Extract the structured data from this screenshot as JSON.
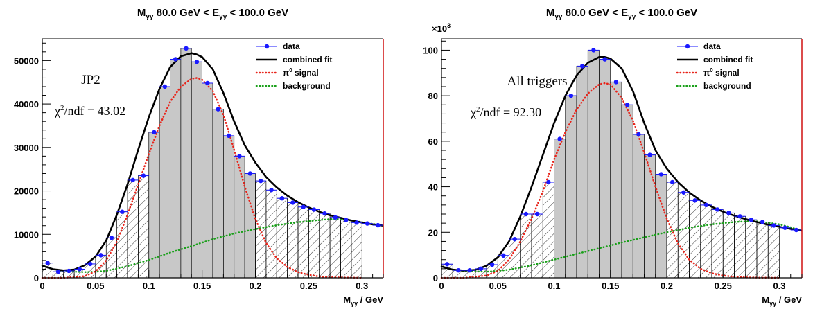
{
  "chart_data": [
    {
      "type": "bar",
      "title": {
        "main": "M",
        "main_sub": "γγ",
        "mid": " 80.0 GeV < E",
        "mid_sub": "γγ",
        "end": " < 100.0 GeV"
      },
      "xlabel": {
        "main": "M",
        "sub": "γγ",
        "end": " / GeV"
      },
      "ylabel": "",
      "multiplier_label": "",
      "xlim": [
        0,
        0.32
      ],
      "ylim": [
        0,
        55000
      ],
      "x_ticks": [
        0,
        0.05,
        0.1,
        0.15,
        0.2,
        0.25,
        0.3
      ],
      "x_tick_labels": [
        "0",
        "0.05",
        "0.1",
        "0.15",
        "0.2",
        "0.25",
        "0.3"
      ],
      "y_ticks": [
        0,
        10000,
        20000,
        30000,
        40000,
        50000
      ],
      "y_tick_labels": [
        "0",
        "10000",
        "20000",
        "30000",
        "40000",
        "50000"
      ],
      "bin_width": 0.01,
      "data": {
        "x": [
          0.005,
          0.015,
          0.025,
          0.035,
          0.045,
          0.055,
          0.065,
          0.075,
          0.085,
          0.095,
          0.105,
          0.115,
          0.125,
          0.135,
          0.145,
          0.155,
          0.165,
          0.175,
          0.185,
          0.195,
          0.205,
          0.215,
          0.225,
          0.235,
          0.245,
          0.255,
          0.265,
          0.275,
          0.285,
          0.295,
          0.305,
          0.315
        ],
        "y": [
          3400,
          1400,
          1600,
          2000,
          3200,
          5200,
          9200,
          15200,
          22500,
          23500,
          33500,
          44000,
          50300,
          52800,
          49700,
          44800,
          38800,
          32700,
          28000,
          24000,
          22300,
          20200,
          18300,
          17300,
          16300,
          15700,
          14800,
          13900,
          13300,
          12700,
          12500,
          12100
        ]
      },
      "regions": [
        {
          "from": 0.0,
          "to": 0.1,
          "fill": "hatched"
        },
        {
          "from": 0.1,
          "to": 0.2,
          "fill": "solid"
        },
        {
          "from": 0.2,
          "to": 0.3,
          "fill": "hatched"
        }
      ],
      "combined_fit": {
        "x": [
          0.0,
          0.01,
          0.02,
          0.03,
          0.04,
          0.05,
          0.06,
          0.07,
          0.08,
          0.09,
          0.1,
          0.11,
          0.12,
          0.13,
          0.14,
          0.145,
          0.15,
          0.16,
          0.17,
          0.18,
          0.19,
          0.2,
          0.21,
          0.22,
          0.23,
          0.24,
          0.25,
          0.26,
          0.27,
          0.28,
          0.29,
          0.3,
          0.31,
          0.32
        ],
        "y": [
          2800,
          2000,
          1700,
          1900,
          2900,
          4900,
          8600,
          14500,
          21500,
          29500,
          37000,
          43500,
          48500,
          51000,
          51700,
          51400,
          50800,
          48000,
          42500,
          36000,
          30500,
          26500,
          23200,
          20800,
          18900,
          17400,
          16200,
          15200,
          14400,
          13800,
          13200,
          12700,
          12300,
          12000
        ]
      },
      "signal": {
        "x": [
          0.0,
          0.02,
          0.04,
          0.05,
          0.06,
          0.07,
          0.08,
          0.09,
          0.1,
          0.11,
          0.12,
          0.13,
          0.14,
          0.145,
          0.15,
          0.16,
          0.17,
          0.18,
          0.19,
          0.2,
          0.21,
          0.22,
          0.23,
          0.24,
          0.25,
          0.26,
          0.27,
          0.28,
          0.29,
          0.3
        ],
        "y": [
          0,
          0,
          400,
          1500,
          4000,
          8300,
          14500,
          21500,
          28500,
          35000,
          40500,
          44000,
          45800,
          46000,
          45600,
          43000,
          37500,
          29500,
          21000,
          13500,
          8000,
          4500,
          2500,
          1300,
          700,
          300,
          150,
          80,
          40,
          0
        ]
      },
      "background": {
        "x": [
          0.0,
          0.01,
          0.02,
          0.03,
          0.04,
          0.05,
          0.06,
          0.08,
          0.1,
          0.12,
          0.14,
          0.16,
          0.18,
          0.2,
          0.22,
          0.24,
          0.26,
          0.27,
          0.28,
          0.29,
          0.3,
          0.31,
          0.32
        ],
        "y": [
          2800,
          2000,
          1600,
          1400,
          1300,
          1400,
          1600,
          2700,
          4100,
          5800,
          7300,
          8900,
          10200,
          11200,
          12100,
          12800,
          13300,
          13500,
          13500,
          13200,
          12800,
          12400,
          12000
        ]
      },
      "legend": {
        "placement": "top-right",
        "entries": [
          {
            "label": "data",
            "symbol": "marker"
          },
          {
            "label": "combined fit",
            "symbol": "solid-line"
          },
          {
            "label_main": "π",
            "label_sup": "0",
            "label_end": " signal",
            "symbol": "dotted-line"
          },
          {
            "label": "background",
            "symbol": "dotted-line"
          }
        ]
      },
      "annotations": {
        "trigger": "JP2",
        "chi2_prefix": "χ",
        "chi2_sup": "2",
        "chi2_rest": "/ndf = 43.02"
      },
      "colors": {
        "data": "#1a1aff",
        "combined_fit": "#000000",
        "signal": "#e8241a",
        "background": "#1aa01a",
        "solid_fill": "#c8c8c8",
        "frame_right": "#cc0000"
      }
    },
    {
      "type": "bar",
      "title": {
        "main": "M",
        "main_sub": "γγ",
        "mid": " 80.0 GeV < E",
        "mid_sub": "γγ",
        "end": " < 100.0 GeV"
      },
      "xlabel": {
        "main": "M",
        "sub": "γγ",
        "end": " / GeV"
      },
      "ylabel": "",
      "multiplier_label": {
        "main": "×10",
        "sup": "3"
      },
      "xlim": [
        0,
        0.32
      ],
      "ylim": [
        0,
        105
      ],
      "x_ticks": [
        0,
        0.05,
        0.1,
        0.15,
        0.2,
        0.25,
        0.3
      ],
      "x_tick_labels": [
        "0",
        "0.05",
        "0.1",
        "0.15",
        "0.2",
        "0.25",
        "0.3"
      ],
      "y_ticks": [
        0,
        20,
        40,
        60,
        80,
        100
      ],
      "y_tick_labels": [
        "0",
        "20",
        "40",
        "60",
        "80",
        "100"
      ],
      "bin_width": 0.01,
      "data": {
        "x": [
          0.005,
          0.015,
          0.025,
          0.035,
          0.045,
          0.055,
          0.065,
          0.075,
          0.085,
          0.095,
          0.105,
          0.115,
          0.125,
          0.135,
          0.145,
          0.155,
          0.165,
          0.175,
          0.185,
          0.195,
          0.205,
          0.215,
          0.225,
          0.235,
          0.245,
          0.255,
          0.265,
          0.275,
          0.285,
          0.295,
          0.305,
          0.315
        ],
        "y": [
          6,
          3.3,
          3.3,
          4,
          5.8,
          9.8,
          17,
          28,
          28,
          42,
          61,
          80,
          93,
          100,
          96,
          86,
          76,
          63,
          54,
          45.5,
          42,
          37.5,
          34,
          32,
          30,
          28.5,
          27,
          25.5,
          24.5,
          23,
          22,
          21
        ]
      },
      "regions": [
        {
          "from": 0.0,
          "to": 0.1,
          "fill": "hatched"
        },
        {
          "from": 0.1,
          "to": 0.2,
          "fill": "solid"
        },
        {
          "from": 0.2,
          "to": 0.3,
          "fill": "hatched"
        }
      ],
      "combined_fit": {
        "x": [
          0.0,
          0.01,
          0.02,
          0.03,
          0.04,
          0.05,
          0.06,
          0.07,
          0.08,
          0.09,
          0.1,
          0.11,
          0.12,
          0.13,
          0.14,
          0.145,
          0.15,
          0.16,
          0.17,
          0.18,
          0.19,
          0.2,
          0.21,
          0.22,
          0.23,
          0.24,
          0.25,
          0.26,
          0.27,
          0.28,
          0.29,
          0.3,
          0.31,
          0.32
        ],
        "y": [
          5,
          3.6,
          3.2,
          3.5,
          5.3,
          9,
          16,
          27,
          40,
          54,
          68,
          80,
          89,
          94.5,
          97,
          97,
          96.3,
          92,
          82,
          68,
          56,
          48,
          42,
          37.5,
          34,
          31.2,
          29,
          27.3,
          25.8,
          24.5,
          23.3,
          22.4,
          21.5,
          20.7
        ]
      },
      "signal": {
        "x": [
          0.0,
          0.02,
          0.04,
          0.05,
          0.06,
          0.07,
          0.08,
          0.09,
          0.1,
          0.11,
          0.12,
          0.13,
          0.14,
          0.145,
          0.15,
          0.16,
          0.17,
          0.18,
          0.19,
          0.2,
          0.21,
          0.22,
          0.23,
          0.24,
          0.25,
          0.26,
          0.27,
          0.28,
          0.29,
          0.3
        ],
        "y": [
          0,
          0,
          1,
          3,
          8,
          16,
          26,
          38,
          52,
          64,
          74,
          81,
          85,
          85.5,
          85,
          79,
          69,
          55,
          40,
          26,
          15,
          8,
          4,
          2,
          1,
          0.5,
          0.2,
          0.1,
          0.05,
          0
        ]
      },
      "background": {
        "x": [
          0.0,
          0.01,
          0.02,
          0.03,
          0.04,
          0.05,
          0.06,
          0.08,
          0.1,
          0.12,
          0.14,
          0.16,
          0.18,
          0.2,
          0.22,
          0.24,
          0.26,
          0.27,
          0.28,
          0.29,
          0.3,
          0.31,
          0.32
        ],
        "y": [
          5,
          3.6,
          3,
          2.8,
          2.7,
          3,
          3.6,
          5.5,
          8,
          10.5,
          13,
          15.5,
          17.8,
          20,
          22,
          23.5,
          24.5,
          24.8,
          24.7,
          24.2,
          23.5,
          22.2,
          20.7
        ]
      },
      "legend": {
        "placement": "top-right",
        "entries": [
          {
            "label": "data",
            "symbol": "marker"
          },
          {
            "label": "combined fit",
            "symbol": "solid-line"
          },
          {
            "label_main": "π",
            "label_sup": "0",
            "label_end": " signal",
            "symbol": "dotted-line"
          },
          {
            "label": "background",
            "symbol": "dotted-line"
          }
        ]
      },
      "annotations": {
        "trigger": "All triggers",
        "chi2_prefix": "χ",
        "chi2_sup": "2",
        "chi2_rest": "/ndf = 92.30"
      },
      "colors": {
        "data": "#1a1aff",
        "combined_fit": "#000000",
        "signal": "#e8241a",
        "background": "#1aa01a",
        "solid_fill": "#c8c8c8",
        "frame_right": "#cc0000"
      }
    }
  ]
}
